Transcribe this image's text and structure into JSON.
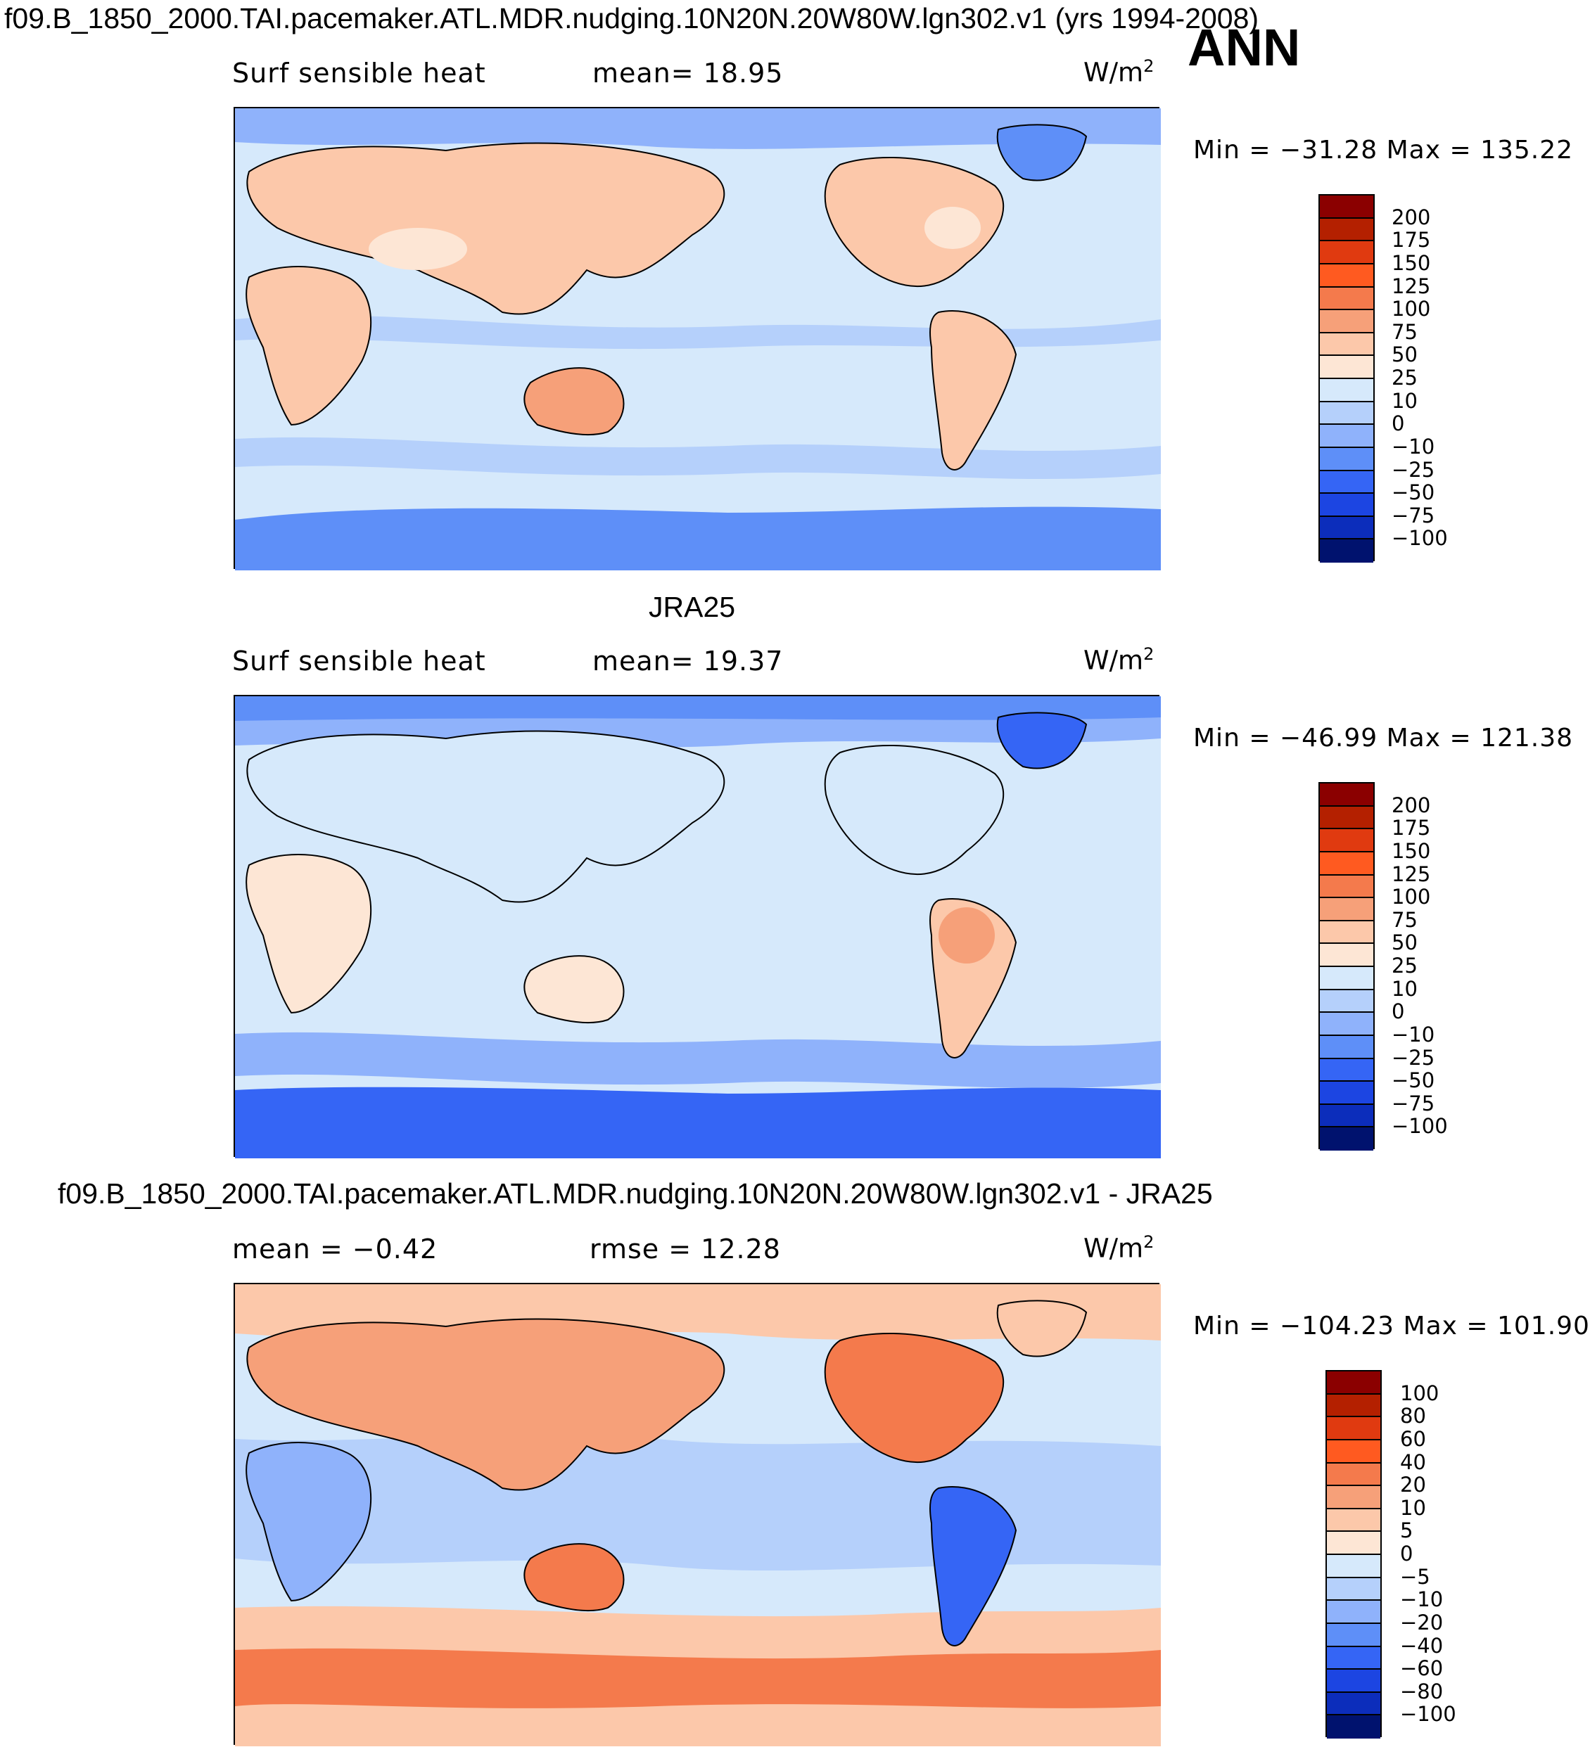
{
  "header": {
    "title": "f09.B_1850_2000.TAI.pacemaker.ATL.MDR.nudging.10N20N.20W80W.lgn302.v1 (yrs 1994-2008)",
    "season": "ANN"
  },
  "panels": [
    {
      "case_title": "",
      "left_label": "Surf sensible heat",
      "center_label": "mean=   18.95",
      "units": "W/m",
      "units_exp": "2",
      "minmax": "Min = −31.28 Max = 135.22",
      "colorbar": {
        "labels": [
          "200",
          "175",
          "150",
          "125",
          "100",
          "75",
          "50",
          "25",
          "10",
          "0",
          "−10",
          "−25",
          "−50",
          "−75",
          "−100"
        ],
        "colors": [
          "#8b0000",
          "#b42000",
          "#e03a10",
          "#ff5a20",
          "#f47a4c",
          "#f6a079",
          "#fcc8aa",
          "#fde6d5",
          "#d6e9fb",
          "#b5d0fb",
          "#8fb2fb",
          "#5e8ff8",
          "#3565f5",
          "#1c45e2",
          "#0c2dbb",
          "#00126e"
        ]
      }
    },
    {
      "case_title": "JRA25",
      "left_label": "Surf sensible heat",
      "center_label": "mean=   19.37",
      "units": "W/m",
      "units_exp": "2",
      "minmax": "Min = −46.99 Max = 121.38",
      "colorbar": {
        "labels": [
          "200",
          "175",
          "150",
          "125",
          "100",
          "75",
          "50",
          "25",
          "10",
          "0",
          "−10",
          "−25",
          "−50",
          "−75",
          "−100"
        ],
        "colors": [
          "#8b0000",
          "#b42000",
          "#e03a10",
          "#ff5a20",
          "#f47a4c",
          "#f6a079",
          "#fcc8aa",
          "#fde6d5",
          "#d6e9fb",
          "#b5d0fb",
          "#8fb2fb",
          "#5e8ff8",
          "#3565f5",
          "#1c45e2",
          "#0c2dbb",
          "#00126e"
        ]
      }
    },
    {
      "case_title": "f09.B_1850_2000.TAI.pacemaker.ATL.MDR.nudging.10N20N.20W80W.lgn302.v1 - JRA25",
      "left_label": "mean =   −0.42",
      "center_label": "rmse =   12.28",
      "units": "W/m",
      "units_exp": "2",
      "minmax": "Min = −104.23 Max = 101.90",
      "colorbar": {
        "labels": [
          "100",
          "80",
          "60",
          "40",
          "20",
          "10",
          "5",
          "0",
          "−5",
          "−10",
          "−20",
          "−40",
          "−60",
          "−80",
          "−100"
        ],
        "colors": [
          "#8b0000",
          "#b42000",
          "#e03a10",
          "#ff5a20",
          "#f47a4c",
          "#f6a079",
          "#fcc8aa",
          "#fde6d5",
          "#d6e9fb",
          "#b5d0fb",
          "#8fb2fb",
          "#5e8ff8",
          "#3565f5",
          "#1c45e2",
          "#0c2dbb",
          "#00126e"
        ]
      }
    }
  ],
  "map_colors": {
    "ocean_light": "#d6e9fb",
    "ocean_mid": "#b5d0fb",
    "cool": "#8fb2fb",
    "cold": "#5e8ff8",
    "land_warm": "#fcc8aa",
    "land_light": "#fde6d5",
    "land_hot": "#f6a079",
    "diff_warm": "#f47a4c"
  }
}
